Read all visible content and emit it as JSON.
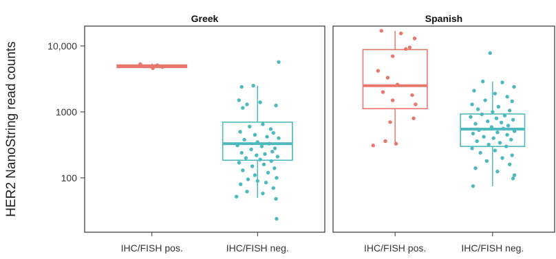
{
  "chart_data": {
    "type": "box",
    "ylabel": "HER2 NanoString read counts",
    "y_scale": "log",
    "ylim": [
      15,
      20000
    ],
    "y_ticks": [
      100,
      1000,
      10000
    ],
    "y_tick_labels": [
      "100",
      "1000",
      "10,000"
    ],
    "grid": false,
    "categories": [
      "IHC/FISH pos.",
      "IHC/FISH neg."
    ],
    "category_colors": [
      "#e8776b",
      "#4db8bd"
    ],
    "panels": [
      {
        "title": "Greek",
        "groups": [
          {
            "category": "IHC/FISH pos.",
            "box": {
              "q1": 4700,
              "median": 4900,
              "q3": 5150,
              "whisker_low": 4500,
              "whisker_high": 5400
            },
            "points": [
              {
                "x": -0.22,
                "y": 5300
              },
              {
                "x": -0.1,
                "y": 4900
              },
              {
                "x": 0.02,
                "y": 4600
              },
              {
                "x": 0.1,
                "y": 5100
              },
              {
                "x": 0.2,
                "y": 4800
              }
            ]
          },
          {
            "category": "IHC/FISH neg.",
            "box": {
              "q1": 185,
              "median": 330,
              "q3": 700,
              "whisker_low": 50,
              "whisker_high": 2500
            },
            "points": [
              {
                "x": -0.3,
                "y": 2400
              },
              {
                "x": -0.08,
                "y": 2500
              },
              {
                "x": -0.35,
                "y": 1500
              },
              {
                "x": -0.2,
                "y": 1300
              },
              {
                "x": 0.05,
                "y": 1400
              },
              {
                "x": -0.28,
                "y": 1150
              },
              {
                "x": 0.35,
                "y": 1250
              },
              {
                "x": 0.1,
                "y": 650
              },
              {
                "x": -0.15,
                "y": 600
              },
              {
                "x": 0.25,
                "y": 550
              },
              {
                "x": -0.33,
                "y": 500
              },
              {
                "x": 0.3,
                "y": 480
              },
              {
                "x": -0.05,
                "y": 450
              },
              {
                "x": 0.18,
                "y": 420
              },
              {
                "x": 0.4,
                "y": 400
              },
              {
                "x": -0.25,
                "y": 380
              },
              {
                "x": 0.0,
                "y": 350
              },
              {
                "x": 0.22,
                "y": 330
              },
              {
                "x": -0.38,
                "y": 310
              },
              {
                "x": 0.08,
                "y": 300
              },
              {
                "x": 0.33,
                "y": 280
              },
              {
                "x": -0.12,
                "y": 270
              },
              {
                "x": 0.28,
                "y": 250
              },
              {
                "x": -0.3,
                "y": 240
              },
              {
                "x": 0.14,
                "y": 230
              },
              {
                "x": -0.02,
                "y": 220
              },
              {
                "x": 0.38,
                "y": 210
              },
              {
                "x": -0.22,
                "y": 200
              },
              {
                "x": 0.05,
                "y": 190
              },
              {
                "x": 0.26,
                "y": 180
              },
              {
                "x": -0.35,
                "y": 170
              },
              {
                "x": 0.12,
                "y": 160
              },
              {
                "x": -0.1,
                "y": 150
              },
              {
                "x": 0.32,
                "y": 140
              },
              {
                "x": -0.28,
                "y": 130
              },
              {
                "x": 0.2,
                "y": 120
              },
              {
                "x": -0.05,
                "y": 110
              },
              {
                "x": 0.36,
                "y": 100
              },
              {
                "x": -0.18,
                "y": 95
              },
              {
                "x": 0.0,
                "y": 90
              },
              {
                "x": 0.16,
                "y": 85
              },
              {
                "x": -0.32,
                "y": 80
              },
              {
                "x": 0.3,
                "y": 70
              },
              {
                "x": -0.2,
                "y": 62
              },
              {
                "x": 0.1,
                "y": 58
              },
              {
                "x": -0.4,
                "y": 52
              },
              {
                "x": 0.35,
                "y": 48
              },
              {
                "x": 0.4,
                "y": 5700
              },
              {
                "x": 0.36,
                "y": 24
              }
            ]
          }
        ]
      },
      {
        "title": "Spanish",
        "groups": [
          {
            "category": "IHC/FISH pos.",
            "box": {
              "q1": 1120,
              "median": 2500,
              "q3": 8800,
              "whisker_low": 310,
              "whisker_high": 17000
            },
            "points": [
              {
                "x": -0.28,
                "y": 17000
              },
              {
                "x": 0.12,
                "y": 15500
              },
              {
                "x": 0.4,
                "y": 13000
              },
              {
                "x": 0.3,
                "y": 9500
              },
              {
                "x": 0.22,
                "y": 9000
              },
              {
                "x": -0.05,
                "y": 7000
              },
              {
                "x": -0.35,
                "y": 4200
              },
              {
                "x": -0.15,
                "y": 3300
              },
              {
                "x": 0.05,
                "y": 2600
              },
              {
                "x": 0.35,
                "y": 1800
              },
              {
                "x": -0.25,
                "y": 2000
              },
              {
                "x": 0.42,
                "y": 1300
              },
              {
                "x": 0.38,
                "y": 800
              },
              {
                "x": -0.05,
                "y": 1500
              },
              {
                "x": -0.45,
                "y": 310
              },
              {
                "x": -0.2,
                "y": 360
              },
              {
                "x": 0.02,
                "y": 330
              },
              {
                "x": -0.1,
                "y": 700
              }
            ]
          },
          {
            "category": "IHC/FISH neg.",
            "box": {
              "q1": 300,
              "median": 550,
              "q3": 930,
              "whisker_low": 75,
              "whisker_high": 2900
            },
            "points": [
              {
                "x": -0.05,
                "y": 7800
              },
              {
                "x": -0.2,
                "y": 2900
              },
              {
                "x": 0.2,
                "y": 2800
              },
              {
                "x": 0.44,
                "y": 2400
              },
              {
                "x": -0.38,
                "y": 2100
              },
              {
                "x": 0.05,
                "y": 1900
              },
              {
                "x": 0.3,
                "y": 1700
              },
              {
                "x": -0.15,
                "y": 1500
              },
              {
                "x": 0.4,
                "y": 1450
              },
              {
                "x": -0.42,
                "y": 1300
              },
              {
                "x": 0.12,
                "y": 1200
              },
              {
                "x": -0.3,
                "y": 1100
              },
              {
                "x": 0.35,
                "y": 1050
              },
              {
                "x": 0.0,
                "y": 1000
              },
              {
                "x": -0.22,
                "y": 920
              },
              {
                "x": 0.25,
                "y": 880
              },
              {
                "x": -0.45,
                "y": 840
              },
              {
                "x": 0.08,
                "y": 800
              },
              {
                "x": 0.42,
                "y": 760
              },
              {
                "x": -0.1,
                "y": 720
              },
              {
                "x": 0.18,
                "y": 690
              },
              {
                "x": -0.35,
                "y": 660
              },
              {
                "x": 0.32,
                "y": 620
              },
              {
                "x": -0.02,
                "y": 590
              },
              {
                "x": 0.22,
                "y": 560
              },
              {
                "x": -0.28,
                "y": 530
              },
              {
                "x": 0.45,
                "y": 510
              },
              {
                "x": 0.1,
                "y": 490
              },
              {
                "x": -0.4,
                "y": 470
              },
              {
                "x": 0.3,
                "y": 450
              },
              {
                "x": -0.18,
                "y": 420
              },
              {
                "x": 0.02,
                "y": 400
              },
              {
                "x": 0.38,
                "y": 380
              },
              {
                "x": -0.32,
                "y": 360
              },
              {
                "x": 0.15,
                "y": 340
              },
              {
                "x": -0.08,
                "y": 320
              },
              {
                "x": 0.28,
                "y": 300
              },
              {
                "x": -0.42,
                "y": 280
              },
              {
                "x": 0.05,
                "y": 260
              },
              {
                "x": -0.25,
                "y": 240
              },
              {
                "x": 0.4,
                "y": 220
              },
              {
                "x": 0.2,
                "y": 200
              },
              {
                "x": -0.12,
                "y": 180
              },
              {
                "x": 0.35,
                "y": 160
              },
              {
                "x": -0.35,
                "y": 140
              },
              {
                "x": 0.1,
                "y": 125
              },
              {
                "x": 0.45,
                "y": 110
              },
              {
                "x": 0.42,
                "y": 98
              },
              {
                "x": -0.4,
                "y": 75
              }
            ]
          }
        ]
      }
    ]
  }
}
